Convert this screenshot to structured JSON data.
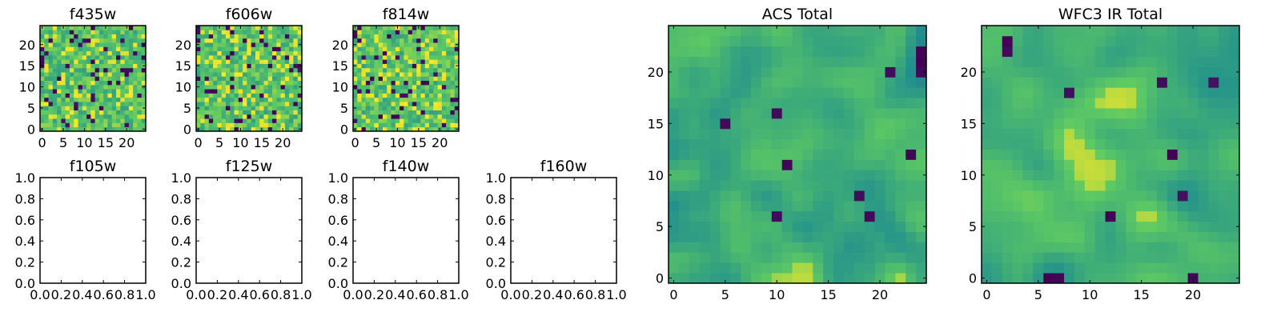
{
  "colormap": [
    "#440154",
    "#3b528b",
    "#21908d",
    "#5dc963",
    "#fde725"
  ],
  "chart_data": [
    {
      "type": "heatmap",
      "title": "f435w",
      "xlim": [
        -0.5,
        24.5
      ],
      "ylim": [
        -0.5,
        24.5
      ],
      "xticks": [
        0,
        5,
        10,
        15,
        20
      ],
      "yticks": [
        0,
        5,
        10,
        15,
        20
      ],
      "grid": false,
      "shape": [
        25,
        25
      ],
      "seed": 11,
      "smooth": 0,
      "levels": [
        0.55,
        0.9
      ],
      "values": []
    },
    {
      "type": "heatmap",
      "title": "f606w",
      "xlim": [
        -0.5,
        24.5
      ],
      "ylim": [
        -0.5,
        24.5
      ],
      "xticks": [
        0,
        5,
        10,
        15,
        20
      ],
      "yticks": [
        0,
        5,
        10,
        15,
        20
      ],
      "grid": false,
      "shape": [
        25,
        25
      ],
      "seed": 23,
      "smooth": 0,
      "levels": [
        0.55,
        0.9
      ],
      "values": []
    },
    {
      "type": "heatmap",
      "title": "f814w",
      "xlim": [
        -0.5,
        24.5
      ],
      "ylim": [
        -0.5,
        24.5
      ],
      "xticks": [
        0,
        5,
        10,
        15,
        20
      ],
      "yticks": [
        0,
        5,
        10,
        15,
        20
      ],
      "grid": false,
      "shape": [
        25,
        25
      ],
      "seed": 37,
      "smooth": 0,
      "levels": [
        0.55,
        0.9
      ],
      "values": []
    },
    {
      "type": "empty",
      "title": "f105w",
      "xlim": [
        0,
        1
      ],
      "ylim": [
        0,
        1
      ],
      "xticks": [
        "0.0",
        "0.2",
        "0.4",
        "0.6",
        "0.8",
        "1.0"
      ],
      "yticks": [
        "0.0",
        "0.2",
        "0.4",
        "0.6",
        "0.8",
        "1.0"
      ]
    },
    {
      "type": "empty",
      "title": "f125w",
      "xlim": [
        0,
        1
      ],
      "ylim": [
        0,
        1
      ],
      "xticks": [
        "0.0",
        "0.2",
        "0.4",
        "0.6",
        "0.8",
        "1.0"
      ],
      "yticks": [
        "0.0",
        "0.2",
        "0.4",
        "0.6",
        "0.8",
        "1.0"
      ]
    },
    {
      "type": "empty",
      "title": "f140w",
      "xlim": [
        0,
        1
      ],
      "ylim": [
        0,
        1
      ],
      "xticks": [
        "0.0",
        "0.2",
        "0.4",
        "0.6",
        "0.8",
        "1.0"
      ],
      "yticks": [
        "0.0",
        "0.2",
        "0.4",
        "0.6",
        "0.8",
        "1.0"
      ]
    },
    {
      "type": "empty",
      "title": "f160w",
      "xlim": [
        0,
        1
      ],
      "ylim": [
        0,
        1
      ],
      "xticks": [
        "0.0",
        "0.2",
        "0.4",
        "0.6",
        "0.8",
        "1.0"
      ],
      "yticks": [
        "0.0",
        "0.2",
        "0.4",
        "0.6",
        "0.8",
        "1.0"
      ]
    },
    {
      "type": "heatmap",
      "title": "ACS Total",
      "xlim": [
        -0.5,
        24.5
      ],
      "ylim": [
        -0.5,
        24.5
      ],
      "xticks": [
        0,
        5,
        10,
        15,
        20
      ],
      "yticks": [
        0,
        5,
        10,
        15,
        20
      ],
      "grid": false,
      "shape": [
        25,
        25
      ],
      "seed": 53,
      "smooth": 0.35,
      "levels": [
        0.45,
        0.8
      ],
      "values": []
    },
    {
      "type": "heatmap",
      "title": "WFC3 IR Total",
      "xlim": [
        -0.5,
        24.5
      ],
      "ylim": [
        -0.5,
        24.5
      ],
      "xticks": [
        0,
        5,
        10,
        15,
        20
      ],
      "yticks": [
        0,
        5,
        10,
        15,
        20
      ],
      "grid": false,
      "shape": [
        25,
        25
      ],
      "seed": 71,
      "smooth": 0.8,
      "levels": [
        0.5,
        0.82
      ],
      "values": []
    }
  ]
}
